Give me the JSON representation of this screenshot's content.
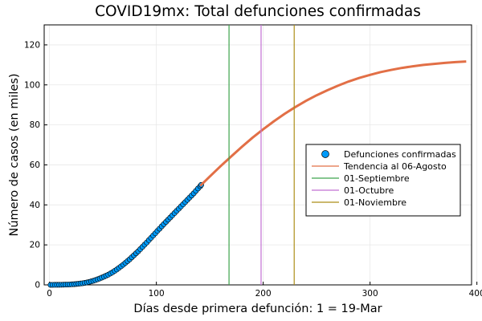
{
  "chart_data": {
    "type": "line",
    "title": "COVID19mx: Total defunciones confirmadas",
    "xlabel": "Días desde primera defunción: 1 = 19-Mar",
    "ylabel": "Número de casos (en miles)",
    "xlim": [
      -5,
      395
    ],
    "ylim": [
      0,
      130
    ],
    "xticks": [
      0,
      100,
      200,
      300,
      400
    ],
    "yticks": [
      0,
      20,
      40,
      60,
      80,
      100,
      120
    ],
    "grid": true,
    "legend_position": "right",
    "series": [
      {
        "name": "Defunciones confirmadas",
        "kind": "scatter",
        "color": "#009af9",
        "points": [
          [
            1,
            0.01
          ],
          [
            3,
            0.02
          ],
          [
            5,
            0.03
          ],
          [
            7,
            0.04
          ],
          [
            9,
            0.05
          ],
          [
            11,
            0.07
          ],
          [
            13,
            0.1
          ],
          [
            15,
            0.13
          ],
          [
            17,
            0.17
          ],
          [
            19,
            0.22
          ],
          [
            21,
            0.28
          ],
          [
            23,
            0.35
          ],
          [
            25,
            0.45
          ],
          [
            27,
            0.55
          ],
          [
            29,
            0.68
          ],
          [
            31,
            0.82
          ],
          [
            33,
            1.0
          ],
          [
            35,
            1.2
          ],
          [
            37,
            1.45
          ],
          [
            39,
            1.75
          ],
          [
            41,
            2.05
          ],
          [
            43,
            2.4
          ],
          [
            45,
            2.8
          ],
          [
            47,
            3.2
          ],
          [
            49,
            3.65
          ],
          [
            51,
            4.1
          ],
          [
            53,
            4.6
          ],
          [
            55,
            5.1
          ],
          [
            57,
            5.7
          ],
          [
            59,
            6.3
          ],
          [
            61,
            7.0
          ],
          [
            63,
            7.7
          ],
          [
            65,
            8.5
          ],
          [
            67,
            9.3
          ],
          [
            69,
            10.1
          ],
          [
            71,
            11.0
          ],
          [
            73,
            11.9
          ],
          [
            75,
            12.8
          ],
          [
            77,
            13.8
          ],
          [
            79,
            14.8
          ],
          [
            81,
            15.8
          ],
          [
            83,
            16.8
          ],
          [
            85,
            17.9
          ],
          [
            87,
            19.0
          ],
          [
            89,
            20.1
          ],
          [
            91,
            21.2
          ],
          [
            93,
            22.4
          ],
          [
            95,
            23.5
          ],
          [
            97,
            24.7
          ],
          [
            99,
            25.8
          ],
          [
            101,
            27.0
          ],
          [
            103,
            28.1
          ],
          [
            105,
            29.3
          ],
          [
            107,
            30.4
          ],
          [
            109,
            31.5
          ],
          [
            111,
            32.6
          ],
          [
            113,
            33.7
          ],
          [
            115,
            34.8
          ],
          [
            117,
            35.9
          ],
          [
            119,
            37.0
          ],
          [
            121,
            38.1
          ],
          [
            123,
            39.2
          ],
          [
            125,
            40.3
          ],
          [
            127,
            41.4
          ],
          [
            129,
            42.5
          ],
          [
            131,
            43.6
          ],
          [
            133,
            44.7
          ],
          [
            135,
            45.8
          ],
          [
            137,
            47.0
          ],
          [
            139,
            48.2
          ],
          [
            141,
            49.3
          ],
          [
            142,
            50.0
          ]
        ]
      },
      {
        "name": "Tendencia al 06-Agosto",
        "kind": "line",
        "color": "#e26f46",
        "points": [
          [
            141,
            49.5
          ],
          [
            150,
            54.2
          ],
          [
            160,
            59.3
          ],
          [
            170,
            64.2
          ],
          [
            180,
            69.0
          ],
          [
            190,
            73.6
          ],
          [
            200,
            77.8
          ],
          [
            210,
            81.8
          ],
          [
            220,
            85.5
          ],
          [
            230,
            88.9
          ],
          [
            240,
            92.0
          ],
          [
            250,
            94.8
          ],
          [
            260,
            97.3
          ],
          [
            270,
            99.6
          ],
          [
            280,
            101.7
          ],
          [
            290,
            103.5
          ],
          [
            300,
            105.0
          ],
          [
            310,
            106.4
          ],
          [
            320,
            107.5
          ],
          [
            330,
            108.5
          ],
          [
            340,
            109.3
          ],
          [
            350,
            110.0
          ],
          [
            360,
            110.5
          ],
          [
            370,
            111.0
          ],
          [
            380,
            111.4
          ],
          [
            390,
            111.7
          ]
        ]
      },
      {
        "name": "01-Septiembre",
        "kind": "vline",
        "color": "#3da44d",
        "x": 168
      },
      {
        "name": "01-Octubre",
        "kind": "vline",
        "color": "#c271d2",
        "x": 198
      },
      {
        "name": "01-Noviembre",
        "kind": "vline",
        "color": "#ac8d18",
        "x": 229
      }
    ]
  }
}
